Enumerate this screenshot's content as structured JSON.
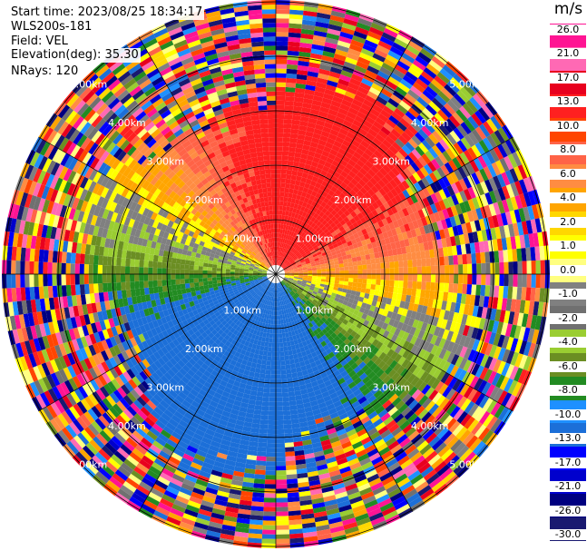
{
  "header": {
    "start_time": "Start time: 2023/08/25 18:34:17",
    "instrument": "WLS200s-181",
    "field": "Field: VEL",
    "elevation": "Elevation(deg): 35.30",
    "nrays": "NRays: 120"
  },
  "colorbar": {
    "unit": "m/s",
    "ticks": [
      "26.0",
      "21.0",
      "17.0",
      "13.0",
      "10.0",
      "8.0",
      "6.0",
      "4.0",
      "2.0",
      "1.0",
      "0.0",
      "-1.0",
      "-2.0",
      "-4.0",
      "-6.0",
      "-8.0",
      "-10.0",
      "-13.0",
      "-17.0",
      "-21.0",
      "-26.0",
      "-30.0"
    ],
    "colors": [
      "#ff1493",
      "#ff69b4",
      "#e8001e",
      "#ff2020",
      "#ff4500",
      "#ff6347",
      "#ff8c42",
      "#ffa500",
      "#ffd700",
      "#ffff00",
      "#ffff80",
      "#808080",
      "#707070",
      "#9acd32",
      "#6b8e23",
      "#228b22",
      "#1e90ff",
      "#1c6fd8",
      "#0000ff",
      "#0000cd",
      "#000080",
      "#191970"
    ]
  },
  "range_rings": {
    "labels": [
      "1.00km",
      "2.00km",
      "3.00km",
      "4.00km",
      "5.00km"
    ]
  }
}
